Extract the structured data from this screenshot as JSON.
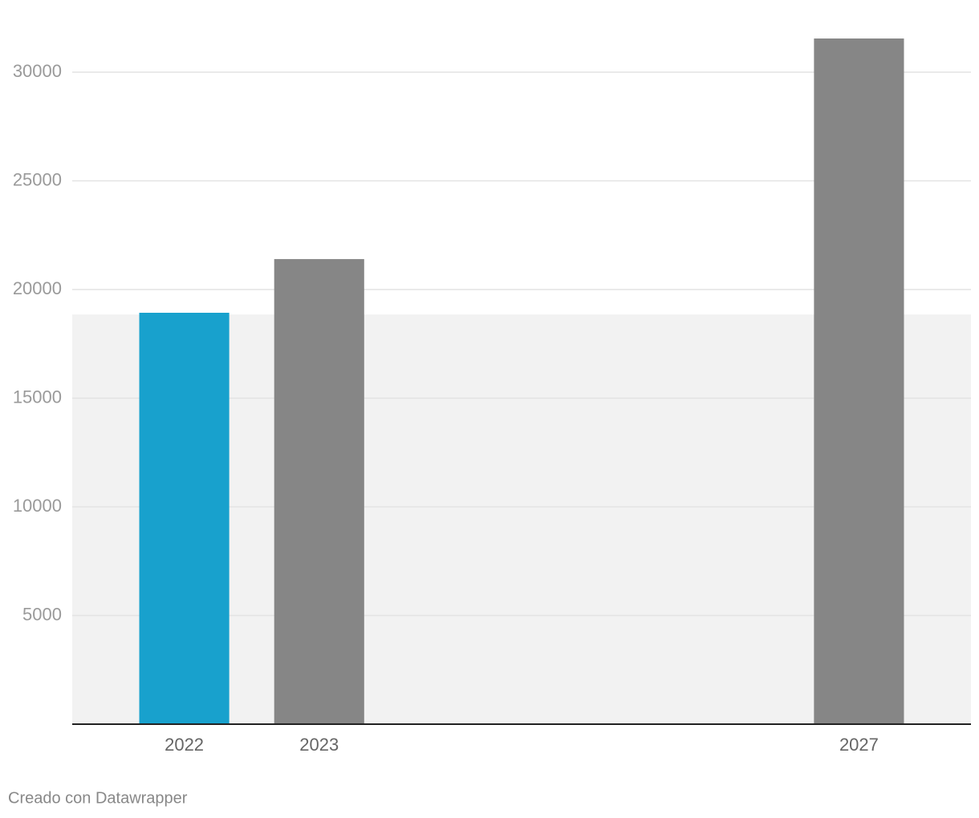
{
  "chart_data": {
    "type": "bar",
    "x": [
      2022,
      2023,
      2027
    ],
    "values": [
      18930,
      21400,
      31550
    ],
    "colors": [
      "#18a1cd",
      "#868686",
      "#868686"
    ],
    "xlim": [
      2021.17,
      2027.83
    ],
    "ylim": [
      0,
      32000
    ],
    "yticks": [
      5000,
      10000,
      15000,
      20000,
      25000,
      30000
    ],
    "grid": true,
    "range_highlight": {
      "from": 0,
      "to": 18850,
      "color": "#f2f2f2"
    },
    "footer": "Creado con Datawrapper"
  }
}
